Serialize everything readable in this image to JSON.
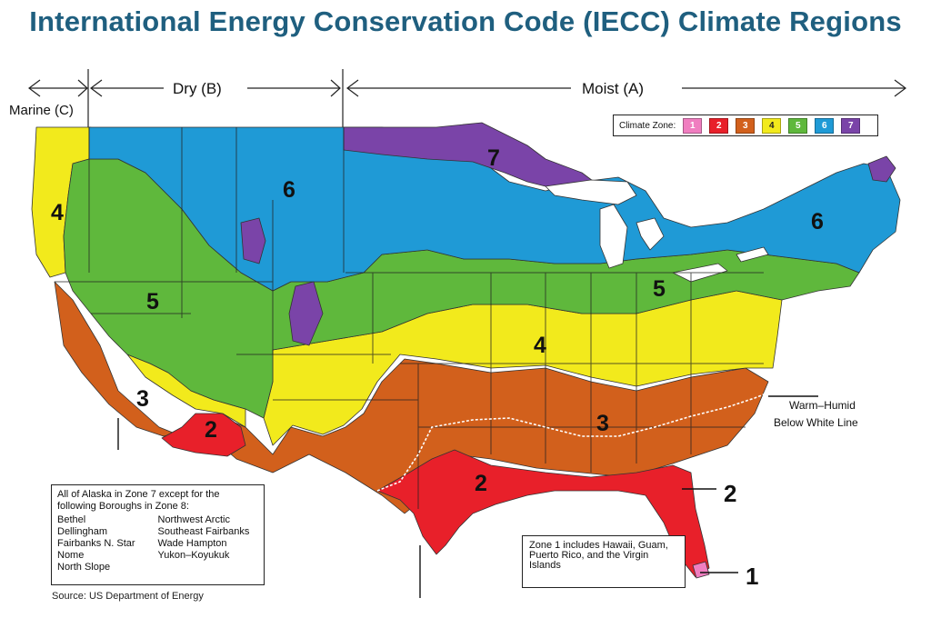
{
  "title": "International Energy Conservation Code (IECC) Climate Regions",
  "moisture_regimes": {
    "marine": "Marine (C)",
    "dry": "Dry (B)",
    "moist": "Moist (A)"
  },
  "legend": {
    "label": "Climate Zone:",
    "zones": [
      {
        "number": "1",
        "color": "#f07ec0"
      },
      {
        "number": "2",
        "color": "#e8202a"
      },
      {
        "number": "3",
        "color": "#d2601c"
      },
      {
        "number": "4",
        "color": "#f2ea1c"
      },
      {
        "number": "5",
        "color": "#5fb83c"
      },
      {
        "number": "6",
        "color": "#1f9ad6"
      },
      {
        "number": "7",
        "color": "#7a44a8"
      }
    ]
  },
  "zone_labels": [
    "4",
    "6",
    "7",
    "6",
    "5",
    "5",
    "4",
    "3",
    "3",
    "2",
    "2"
  ],
  "callouts": {
    "warm_humid_line1": "Warm–Humid",
    "warm_humid_line2": "Below White Line",
    "florida_zone": "2",
    "keys_zone": "1"
  },
  "alaska_note": {
    "intro": "All of Alaska in Zone 7 except for the following Boroughs in Zone 8:",
    "boroughs_left": [
      "Bethel",
      "Dellingham",
      "Fairbanks N. Star",
      "Nome",
      "North Slope"
    ],
    "boroughs_right": [
      "Northwest Arctic",
      "Southeast Fairbanks",
      "Wade Hampton",
      "Yukon–Koyukuk"
    ]
  },
  "zone1_note": "Zone 1 includes Hawaii, Guam, Puerto Rico, and the Virgin Islands",
  "source": "Source: US Department of Energy"
}
